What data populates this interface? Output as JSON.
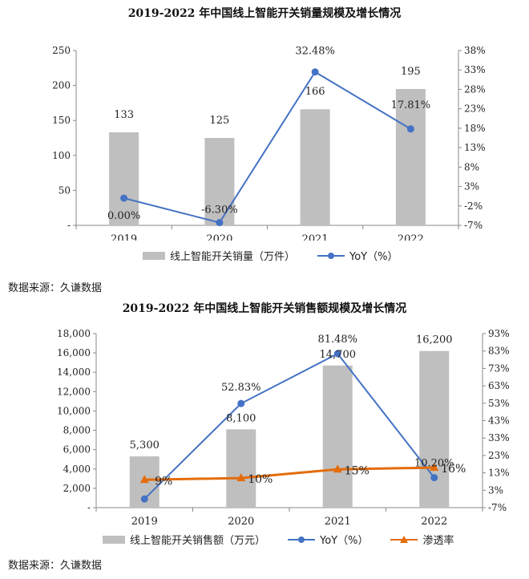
{
  "colors": {
    "bar": "#bfbfbf",
    "yoy": "#4472c4",
    "penetration": "#e46c0a",
    "axis": "#888888"
  },
  "chart_data": [
    {
      "type": "bar",
      "title": "2019-2022 年中国线上智能开关销量规模及增长情况",
      "categories": [
        "2019",
        "2020",
        "2021",
        "2022"
      ],
      "series": [
        {
          "name": "线上智能开关销量（万件）",
          "kind": "bar",
          "axis": "left",
          "values": [
            133,
            125,
            166,
            195
          ],
          "labels": [
            "133",
            "125",
            "166",
            "195"
          ]
        },
        {
          "name": "YoY（%）",
          "kind": "line",
          "axis": "right",
          "values": [
            0.0,
            -6.3,
            32.48,
            17.81
          ],
          "labels": [
            "0.00%",
            "-6.30%",
            "32.48%",
            "17.81%"
          ]
        }
      ],
      "ylim_left": [
        0,
        250
      ],
      "yticks_left": [
        0,
        50,
        100,
        150,
        200,
        250
      ],
      "ytick_labels_left": [
        "-",
        "50",
        "100",
        "150",
        "200",
        "250"
      ],
      "ylim_right": [
        -7,
        38
      ],
      "yticks_right": [
        -7,
        -2,
        3,
        8,
        13,
        18,
        23,
        28,
        33,
        38
      ],
      "ytick_labels_right": [
        "-7%",
        "-2%",
        "3%",
        "8%",
        "13%",
        "18%",
        "23%",
        "28%",
        "33%",
        "38%"
      ],
      "legend": "bottom",
      "grid": false,
      "source": "数据来源：久谦数据"
    },
    {
      "type": "bar",
      "title": "2019-2022 年中国线上智能开关销售额规模及增长情况",
      "categories": [
        "2019",
        "2020",
        "2021",
        "2022"
      ],
      "series": [
        {
          "name": "线上智能开关销售额（万元）",
          "kind": "bar",
          "axis": "left",
          "values": [
            5300,
            8100,
            14700,
            16200
          ],
          "labels": [
            "5,300",
            "8,100",
            "14,700",
            "16,200"
          ]
        },
        {
          "name": "YoY（%）",
          "kind": "line",
          "axis": "right",
          "values": [
            -2,
            52.83,
            81.48,
            10.2
          ],
          "labels": [
            "",
            "52.83%",
            "81.48%",
            "10.20%"
          ]
        },
        {
          "name": "渗透率",
          "kind": "line",
          "axis": "right",
          "values": [
            9,
            10,
            15,
            16
          ],
          "labels": [
            "9%",
            "10%",
            "15%",
            "16%"
          ]
        }
      ],
      "ylim_left": [
        0,
        18000
      ],
      "yticks_left": [
        0,
        2000,
        4000,
        6000,
        8000,
        10000,
        12000,
        14000,
        16000,
        18000
      ],
      "ytick_labels_left": [
        "-",
        "2,000",
        "4,000",
        "6,000",
        "8,000",
        "10,000",
        "12,000",
        "14,000",
        "16,000",
        "18,000"
      ],
      "ylim_right": [
        -7,
        93
      ],
      "yticks_right": [
        -7,
        3,
        13,
        23,
        33,
        43,
        53,
        63,
        73,
        83,
        93
      ],
      "ytick_labels_right": [
        "-7%",
        "3%",
        "13%",
        "23%",
        "33%",
        "43%",
        "53%",
        "63%",
        "73%",
        "83%",
        "93%"
      ],
      "legend": "bottom",
      "grid": false,
      "source": "数据来源：久谦数据"
    }
  ]
}
